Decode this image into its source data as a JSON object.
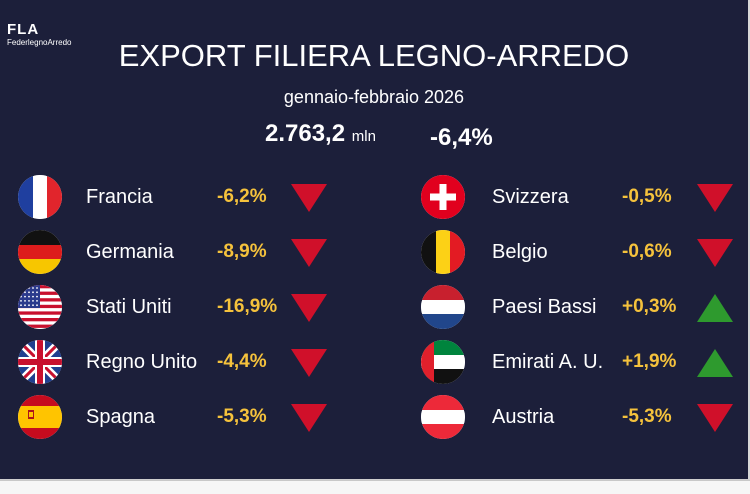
{
  "logo": {
    "mark": "FLA",
    "name": "FederlegnoArredo"
  },
  "header": {
    "title": "EXPORT FILIERA LEGNO-ARREDO",
    "period": "gennaio-febbraio 2026",
    "total_value": "2.763,2",
    "total_unit": "mln",
    "total_change": "-6,4%"
  },
  "colors": {
    "background": "#1c1f3a",
    "change_text": "#f5c23c",
    "down": "#d0102a",
    "up": "#2e9a2e"
  },
  "countries": [
    {
      "name": "Francia",
      "change": "-6,2%",
      "trend": "down",
      "flag": "france-flag-icon"
    },
    {
      "name": "Germania",
      "change": "-8,9%",
      "trend": "down",
      "flag": "germany-flag-icon"
    },
    {
      "name": "Stati Uniti",
      "change": "-16,9%",
      "trend": "down",
      "flag": "usa-flag-icon"
    },
    {
      "name": "Regno Unito",
      "change": "-4,4%",
      "trend": "down",
      "flag": "uk-flag-icon"
    },
    {
      "name": "Spagna",
      "change": "-5,3%",
      "trend": "down",
      "flag": "spain-flag-icon"
    },
    {
      "name": "Svizzera",
      "change": "-0,5%",
      "trend": "down",
      "flag": "switzerland-flag-icon"
    },
    {
      "name": "Belgio",
      "change": "-0,6%",
      "trend": "down",
      "flag": "belgium-flag-icon"
    },
    {
      "name": "Paesi Bassi",
      "change": "+0,3%",
      "trend": "up",
      "flag": "netherlands-flag-icon"
    },
    {
      "name": "Emirati A. U.",
      "change": "+1,9%",
      "trend": "up",
      "flag": "uae-flag-icon"
    },
    {
      "name": "Austria",
      "change": "-5,3%",
      "trend": "down",
      "flag": "austria-flag-icon"
    }
  ]
}
